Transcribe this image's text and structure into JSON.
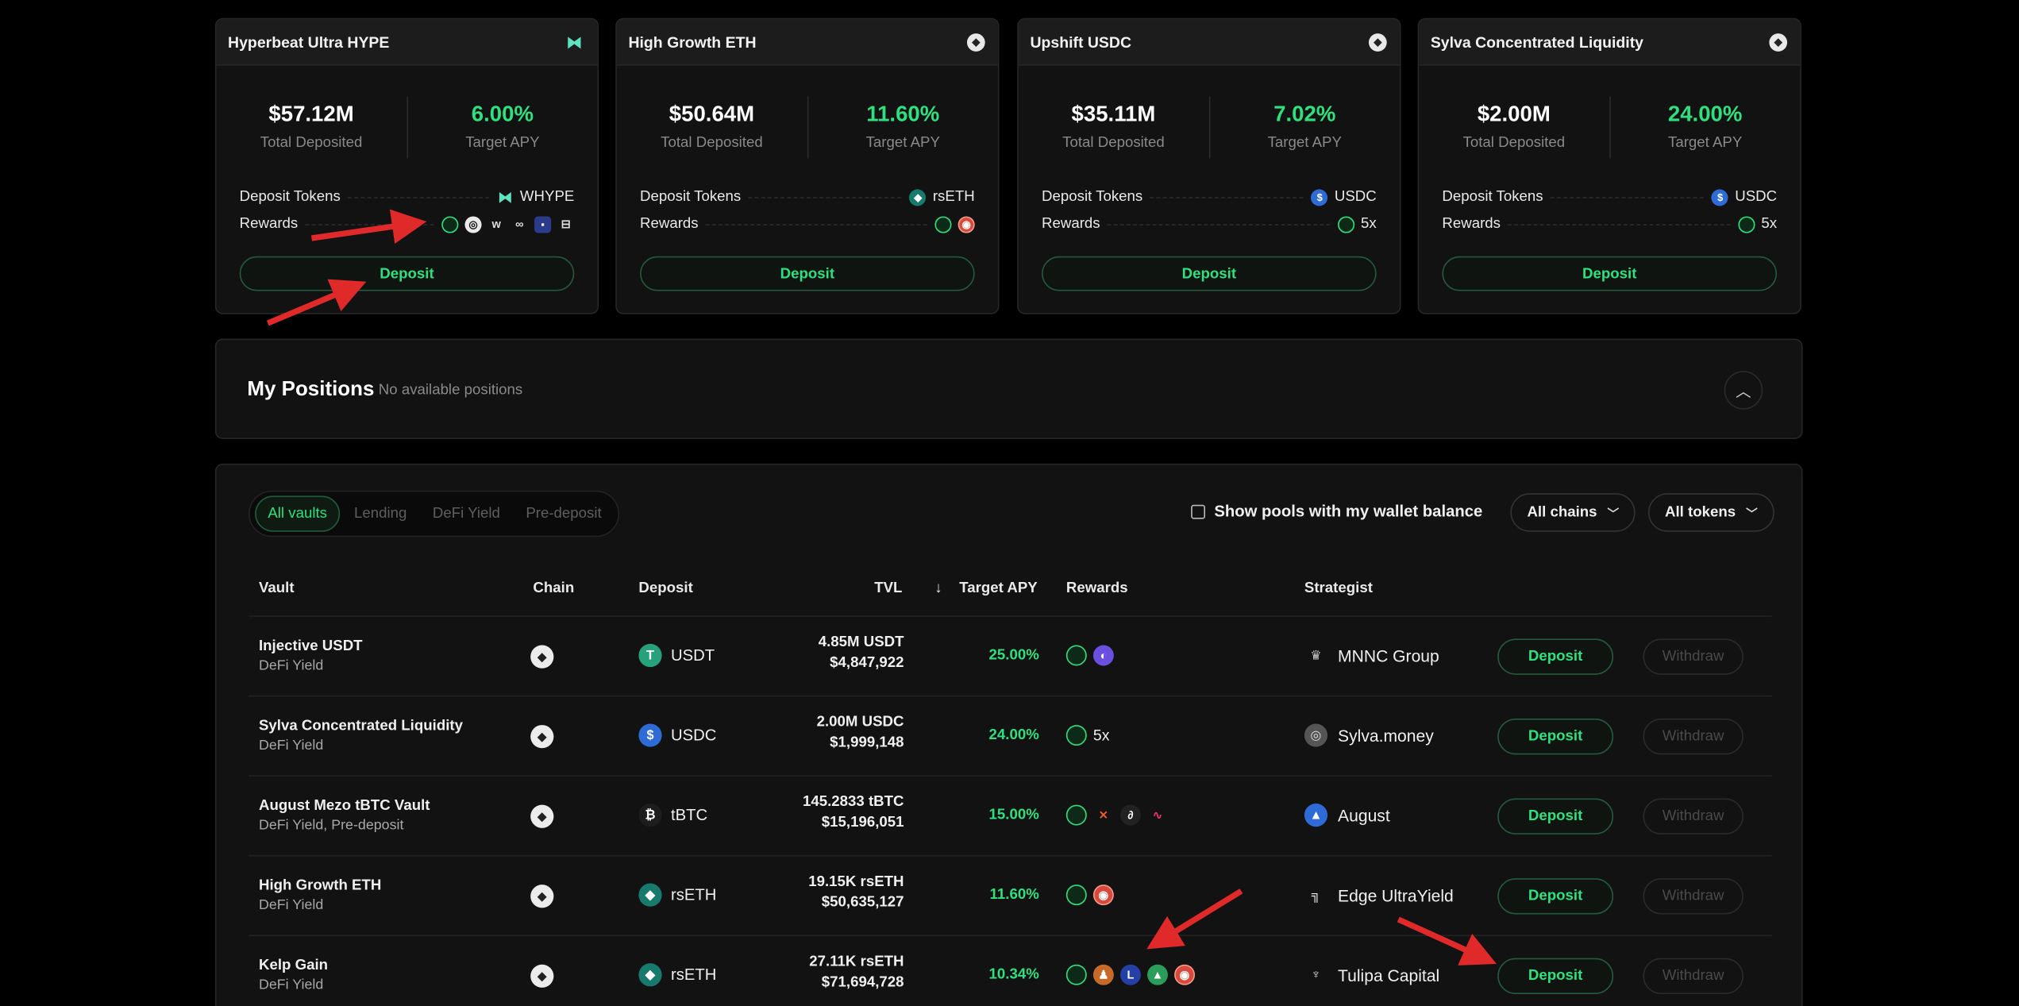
{
  "cards": [
    {
      "title": "Hyperbeat Ultra HYPE",
      "chain_icon": "hype-icon",
      "total": "$57.12M",
      "total_label": "Total Deposited",
      "apy": "6.00%",
      "apy_label": "Target APY",
      "tokens_label": "Deposit Tokens",
      "token": "WHYPE",
      "rewards_label": "Rewards",
      "rewards_extra": "",
      "button": "Deposit"
    },
    {
      "title": "High Growth ETH",
      "chain_icon": "ethereum-icon",
      "total": "$50.64M",
      "total_label": "Total Deposited",
      "apy": "11.60%",
      "apy_label": "Target APY",
      "tokens_label": "Deposit Tokens",
      "token": "rsETH",
      "rewards_label": "Rewards",
      "rewards_extra": "",
      "button": "Deposit"
    },
    {
      "title": "Upshift USDC",
      "chain_icon": "ethereum-icon",
      "total": "$35.11M",
      "total_label": "Total Deposited",
      "apy": "7.02%",
      "apy_label": "Target APY",
      "tokens_label": "Deposit Tokens",
      "token": "USDC",
      "rewards_label": "Rewards",
      "rewards_extra": "5x",
      "button": "Deposit"
    },
    {
      "title": "Sylva Concentrated Liquidity",
      "chain_icon": "ethereum-icon",
      "total": "$2.00M",
      "total_label": "Total Deposited",
      "apy": "24.00%",
      "apy_label": "Target APY",
      "tokens_label": "Deposit Tokens",
      "token": "USDC",
      "rewards_label": "Rewards",
      "rewards_extra": "5x",
      "button": "Deposit"
    }
  ],
  "positions": {
    "title": "My Positions",
    "subtitle": "No available positions"
  },
  "filters": {
    "tabs": [
      "All vaults",
      "Lending",
      "DeFi Yield",
      "Pre-deposit"
    ],
    "active_tab": "All vaults",
    "checkbox_label": "Show pools with my wallet balance",
    "chains": "All chains",
    "tokens": "All tokens"
  },
  "table": {
    "headers": {
      "vault": "Vault",
      "chain": "Chain",
      "deposit": "Deposit",
      "tvl": "TVL",
      "apy": "Target APY",
      "rewards": "Rewards",
      "strategist": "Strategist"
    },
    "sort_indicator": "↓",
    "rows": [
      {
        "name": "Injective USDT",
        "category": "DeFi Yield",
        "token": "USDT",
        "tvl_amount": "4.85M USDT",
        "tvl_usd": "$4,847,922",
        "apy": "25.00%",
        "rewards_extra": "",
        "strategist": "MNNC Group",
        "deposit": "Deposit",
        "withdraw": "Withdraw"
      },
      {
        "name": "Sylva Concentrated Liquidity",
        "category": "DeFi Yield",
        "token": "USDC",
        "tvl_amount": "2.00M USDC",
        "tvl_usd": "$1,999,148",
        "apy": "24.00%",
        "rewards_extra": "5x",
        "strategist": "Sylva.money",
        "deposit": "Deposit",
        "withdraw": "Withdraw"
      },
      {
        "name": "August Mezo tBTC Vault",
        "category": "DeFi Yield, Pre-deposit",
        "token": "tBTC",
        "tvl_amount": "145.2833 tBTC",
        "tvl_usd": "$15,196,051",
        "apy": "15.00%",
        "rewards_extra": "",
        "strategist": "August",
        "deposit": "Deposit",
        "withdraw": "Withdraw"
      },
      {
        "name": "High Growth ETH",
        "category": "DeFi Yield",
        "token": "rsETH",
        "tvl_amount": "19.15K rsETH",
        "tvl_usd": "$50,635,127",
        "apy": "11.60%",
        "rewards_extra": "",
        "strategist": "Edge UltraYield",
        "deposit": "Deposit",
        "withdraw": "Withdraw"
      },
      {
        "name": "Kelp Gain",
        "category": "DeFi Yield",
        "token": "rsETH",
        "tvl_amount": "27.11K rsETH",
        "tvl_usd": "$71,694,728",
        "apy": "10.34%",
        "rewards_extra": "",
        "strategist": "Tulipa Capital",
        "deposit": "Deposit",
        "withdraw": "Withdraw"
      }
    ]
  },
  "colors": {
    "accent": "#2fe07e",
    "annotation": "#e02a2a",
    "background": "#000000",
    "panel": "#121212"
  }
}
